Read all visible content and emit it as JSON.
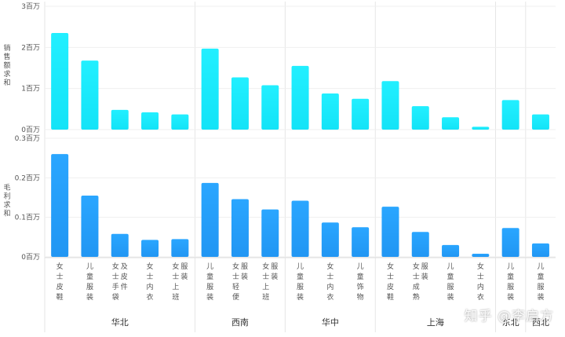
{
  "chart_data": {
    "type": "bar",
    "regions": [
      {
        "name": "华北",
        "categories": [
          "女士皮鞋",
          "儿童服装",
          "女士手袋及皮件",
          "女士内衣",
          "女士上班服装"
        ]
      },
      {
        "name": "西南",
        "categories": [
          "儿童服装",
          "女士轻便服装",
          "女士上班服装"
        ]
      },
      {
        "name": "华中",
        "categories": [
          "儿童服装",
          "女士内衣",
          "儿童饰物"
        ]
      },
      {
        "name": "上海",
        "categories": [
          "女士皮鞋",
          "女士成熟服装",
          "儿童服装",
          "女士内衣"
        ]
      },
      {
        "name": "东北",
        "categories": [
          "儿童服装"
        ]
      },
      {
        "name": "西北",
        "categories": [
          "儿童服装"
        ]
      }
    ],
    "series": [
      {
        "ylabel": "销售额求和",
        "color_top": "#22efff",
        "color_bottom": "#13e3f7",
        "ylim": [
          0,
          3
        ],
        "ticks": [
          0,
          1,
          2,
          3
        ],
        "tick_labels": [
          "0百万",
          "1百万",
          "2百万",
          "3百万"
        ],
        "values": [
          2.35,
          1.68,
          0.48,
          0.42,
          0.37,
          1.97,
          1.27,
          1.08,
          1.55,
          0.88,
          0.75,
          1.18,
          0.57,
          0.3,
          0.07,
          0.72,
          0.37
        ]
      },
      {
        "ylabel": "毛利求和",
        "color_top": "#2aa6ff",
        "color_bottom": "#2196f3",
        "ylim": [
          0,
          0.3
        ],
        "ticks": [
          0,
          0.1,
          0.2,
          0.3
        ],
        "tick_labels": [
          "0百万",
          "0.1百万",
          "0.2百万",
          "0.3百万"
        ],
        "values": [
          0.26,
          0.155,
          0.058,
          0.043,
          0.045,
          0.187,
          0.146,
          0.12,
          0.142,
          0.087,
          0.075,
          0.127,
          0.063,
          0.03,
          0.008,
          0.073,
          0.034
        ]
      }
    ]
  },
  "watermark": "知乎 @李启方"
}
